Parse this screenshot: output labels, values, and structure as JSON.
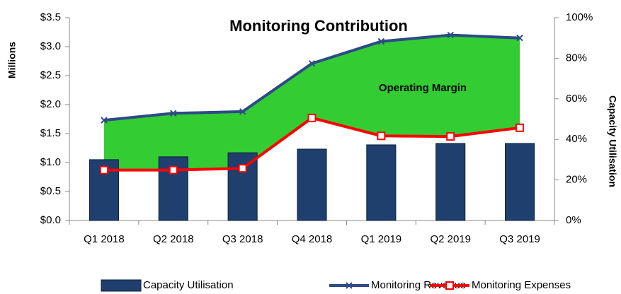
{
  "chart_data": {
    "type": "bar-line",
    "title": "Monitoring Contribution",
    "annotation": "Operating Margin",
    "y_label": "Millions",
    "y2_label": "Capacity Utilisation",
    "categories": [
      "Q1 2018",
      "Q2 2018",
      "Q3 2018",
      "Q4 2018",
      "Q1 2019",
      "Q2 2019",
      "Q3 2019"
    ],
    "series": [
      {
        "name": "Capacity Utilisation",
        "type": "bar",
        "axis": "y2",
        "color": "#1f3f6e",
        "values": [
          30,
          31.4,
          33.4,
          35.2,
          37.3,
          38,
          38
        ]
      },
      {
        "name": "Monitoring Revenue",
        "type": "line",
        "marker": "x",
        "color": "#2e4a87",
        "values": [
          1.73,
          1.85,
          1.88,
          2.71,
          3.09,
          3.2,
          3.15
        ]
      },
      {
        "name": "Monitoring Expenses",
        "type": "line",
        "marker": "square",
        "color": "#ff0000",
        "values": [
          0.87,
          0.87,
          0.9,
          1.77,
          1.46,
          1.45,
          1.6
        ]
      }
    ],
    "fill_between_color": "#33cc33",
    "ylim": [
      0,
      3.5
    ],
    "yticks": [
      {
        "value": 0,
        "label": "$0.0"
      },
      {
        "value": 0.5,
        "label": "$0.5"
      },
      {
        "value": 1,
        "label": "$1.0"
      },
      {
        "value": 1.5,
        "label": "$1.5"
      },
      {
        "value": 2,
        "label": "$2.0"
      },
      {
        "value": 2.5,
        "label": "$2.5"
      },
      {
        "value": 3,
        "label": "$3.0"
      },
      {
        "value": 3.5,
        "label": "$3.5"
      }
    ],
    "y2lim": [
      0,
      100
    ],
    "y2ticks": [
      {
        "value": 0,
        "label": "0%"
      },
      {
        "value": 20,
        "label": "20%"
      },
      {
        "value": 40,
        "label": "40%"
      },
      {
        "value": 60,
        "label": "60%"
      },
      {
        "value": 80,
        "label": "80%"
      },
      {
        "value": 100,
        "label": "100%"
      }
    ],
    "legend": "bottom"
  }
}
